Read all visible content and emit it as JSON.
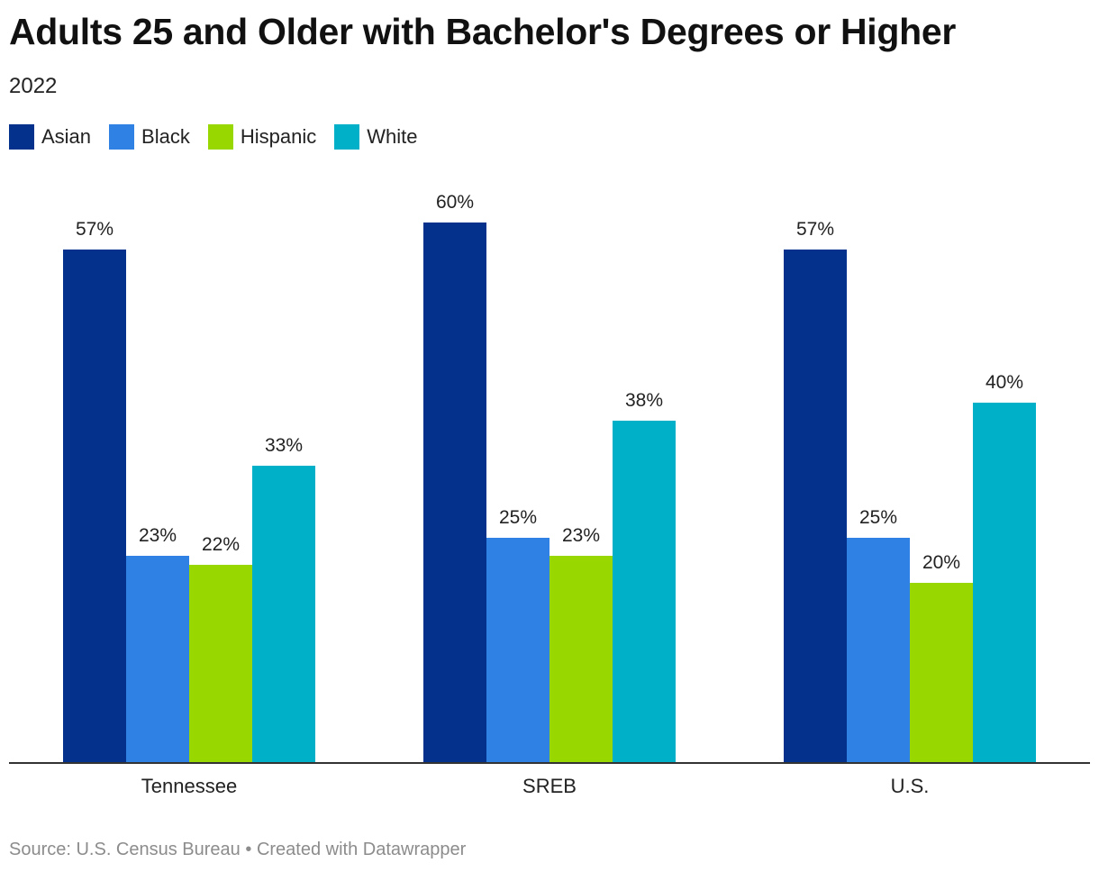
{
  "chart_data": {
    "type": "bar",
    "title": "Adults 25 and Older with Bachelor's Degrees or Higher",
    "subtitle": "2022",
    "categories": [
      "Tennessee",
      "SREB",
      "U.S."
    ],
    "series": [
      {
        "name": "Asian",
        "color": "#03318c",
        "values": [
          57,
          60,
          57
        ],
        "labels": [
          "57%",
          "60%",
          "57%"
        ]
      },
      {
        "name": "Black",
        "color": "#2f81e4",
        "values": [
          23,
          25,
          25
        ],
        "labels": [
          "23%",
          "25%",
          "25%"
        ]
      },
      {
        "name": "Hispanic",
        "color": "#98d700",
        "values": [
          22,
          23,
          20
        ],
        "labels": [
          "22%",
          "23%",
          "20%"
        ]
      },
      {
        "name": "White",
        "color": "#00afc8",
        "values": [
          33,
          38,
          40
        ],
        "labels": [
          "33%",
          "38%",
          "40%"
        ]
      }
    ],
    "ylim": [
      0,
      60
    ],
    "legend_position": "top-left",
    "grid": false
  },
  "footer": {
    "source": "Source: U.S. Census Bureau",
    "separator": "•",
    "credit": "Created with Datawrapper"
  }
}
